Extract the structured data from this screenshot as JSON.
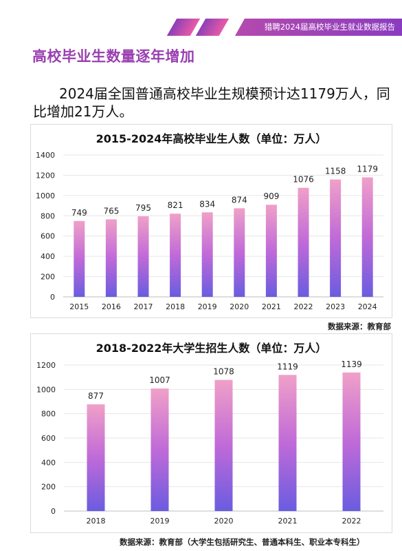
{
  "header": {
    "text": "猎聘2024届高校毕业生就业数据报告"
  },
  "section_title": "高校毕业生数量逐年增加",
  "lead_text": "2024届全国普通高校毕业生规模预计达1179万人，同比增加21万人。",
  "colors": {
    "accent": "#9a3fb0",
    "bar_top": "#f0a0c8",
    "bar_mid": "#c06ad8",
    "bar_bottom": "#6a5ce0"
  },
  "chart_data": [
    {
      "type": "bar",
      "title": "2015-2024年高校毕业生人数（单位：万人）",
      "categories": [
        "2015",
        "2016",
        "2017",
        "2018",
        "2019",
        "2020",
        "2021",
        "2022",
        "2023",
        "2024"
      ],
      "values": [
        749,
        765,
        795,
        821,
        834,
        874,
        909,
        1076,
        1158,
        1179
      ],
      "yticks": [
        0,
        200,
        400,
        600,
        800,
        1000,
        1200,
        1400
      ],
      "ylim": [
        0,
        1400
      ],
      "grid": true,
      "source": "数据来源：教育部"
    },
    {
      "type": "bar",
      "title": "2018-2022年大学生招生人数（单位：万人）",
      "categories": [
        "2018",
        "2019",
        "2020",
        "2021",
        "2022"
      ],
      "values": [
        877,
        1007,
        1078,
        1119,
        1139
      ],
      "yticks": [
        0,
        200,
        400,
        600,
        800,
        1000,
        1200
      ],
      "ylim": [
        0,
        1200
      ],
      "grid": true,
      "source": "数据来源：教育部（大学生包括研究生、普通本科生、职业本专科生）"
    }
  ]
}
